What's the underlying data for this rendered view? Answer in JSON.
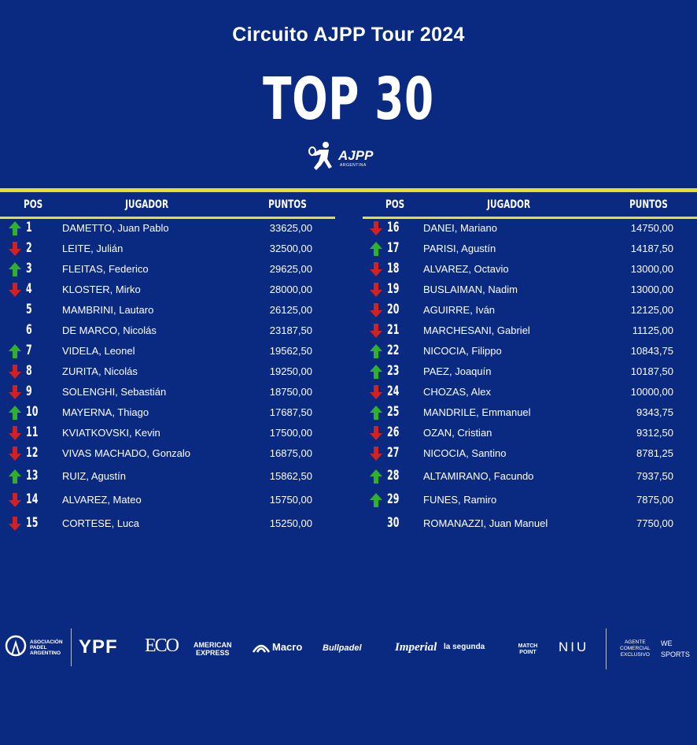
{
  "header": {
    "title": "Circuito AJPP Tour 2024",
    "top_label": "TOP 30",
    "logo_text": "AJPP",
    "logo_sub": "ARGENTINA"
  },
  "columns": {
    "pos": "POS",
    "player": "JUGADOR",
    "points": "PUNTOS"
  },
  "colors": {
    "up": "#2fb02f",
    "down": "#d32020",
    "accent": "#e8e020",
    "background": "#0a2a82"
  },
  "rankings": [
    {
      "pos": "1",
      "trend": "up",
      "name": "DAMETTO, Juan Pablo",
      "points": "33625,00"
    },
    {
      "pos": "2",
      "trend": "down",
      "name": "LEITE, Julián",
      "points": "32500,00"
    },
    {
      "pos": "3",
      "trend": "up",
      "name": "FLEITAS, Federico",
      "points": "29625,00"
    },
    {
      "pos": "4",
      "trend": "down",
      "name": "KLOSTER, Mirko",
      "points": "28000,00"
    },
    {
      "pos": "5",
      "trend": "none",
      "name": "MAMBRINI, Lautaro",
      "points": "26125,00"
    },
    {
      "pos": "6",
      "trend": "none",
      "name": "DE MARCO, Nicolás",
      "points": "23187,50"
    },
    {
      "pos": "7",
      "trend": "up",
      "name": "VIDELA, Leonel",
      "points": "19562,50"
    },
    {
      "pos": "8",
      "trend": "down",
      "name": "ZURITA, Nicolás",
      "points": "19250,00"
    },
    {
      "pos": "9",
      "trend": "down",
      "name": "SOLENGHI, Sebastián",
      "points": "18750,00"
    },
    {
      "pos": "10",
      "trend": "up",
      "name": "MAYERNA, Thiago",
      "points": "17687,50"
    },
    {
      "pos": "11",
      "trend": "down",
      "name": "KVIATKOVSKI, Kevin",
      "points": "17500,00"
    },
    {
      "pos": "12",
      "trend": "down",
      "name": "VIVAS MACHADO, Gonzalo",
      "points": "16875,00"
    },
    {
      "pos": "13",
      "trend": "up",
      "name": "RUIZ, Agustín",
      "points": "15862,50"
    },
    {
      "pos": "14",
      "trend": "down",
      "name": "ALVAREZ, Mateo",
      "points": "15750,00"
    },
    {
      "pos": "15",
      "trend": "down",
      "name": "CORTESE, Luca",
      "points": "15250,00"
    },
    {
      "pos": "16",
      "trend": "down",
      "name": "DANEI, Mariano",
      "points": "14750,00"
    },
    {
      "pos": "17",
      "trend": "up",
      "name": "PARISI, Agustín",
      "points": "14187,50"
    },
    {
      "pos": "18",
      "trend": "down",
      "name": "ALVAREZ, Octavio",
      "points": "13000,00"
    },
    {
      "pos": "19",
      "trend": "down",
      "name": "BUSLAIMAN, Nadim",
      "points": "13000,00"
    },
    {
      "pos": "20",
      "trend": "down",
      "name": "AGUIRRE, Iván",
      "points": "12125,00"
    },
    {
      "pos": "21",
      "trend": "down",
      "name": "MARCHESANI, Gabriel",
      "points": "11125,00"
    },
    {
      "pos": "22",
      "trend": "up",
      "name": "NICOCIA, Filippo",
      "points": "10843,75"
    },
    {
      "pos": "23",
      "trend": "up",
      "name": "PAEZ, Joaquín",
      "points": "10187,50"
    },
    {
      "pos": "24",
      "trend": "down",
      "name": "CHOZAS, Alex",
      "points": "10000,00"
    },
    {
      "pos": "25",
      "trend": "up",
      "name": "MANDRILE, Emmanuel",
      "points": "9343,75"
    },
    {
      "pos": "26",
      "trend": "down",
      "name": "OZAN, Cristian",
      "points": "9312,50"
    },
    {
      "pos": "27",
      "trend": "down",
      "name": "NICOCIA, Santino",
      "points": "8781,25"
    },
    {
      "pos": "28",
      "trend": "up",
      "name": "ALTAMIRANO, Facundo",
      "points": "7937,50"
    },
    {
      "pos": "29",
      "trend": "up",
      "name": "FUNES, Ramiro",
      "points": "7875,00"
    },
    {
      "pos": "30",
      "trend": "none",
      "name": "ROMANAZZI, Juan Manuel",
      "points": "7750,00"
    }
  ],
  "sponsors": {
    "apa": "ASOCIACIÓN\nPADEL\nARGENTINO",
    "ypf": "YPF",
    "eco": "ECO",
    "amex": "AMERICAN\nEXPRESS",
    "macro": "Macro",
    "bullpadel": "Bullpadel",
    "imperial": "Imperial",
    "lasegunda": "la segunda",
    "matchpoint": "MATCH POINT",
    "niu": "NIU",
    "agente": "AGENTE\nCOMERCIAL\nEXCLUSIVO",
    "we": "WE\nSPORTS"
  }
}
